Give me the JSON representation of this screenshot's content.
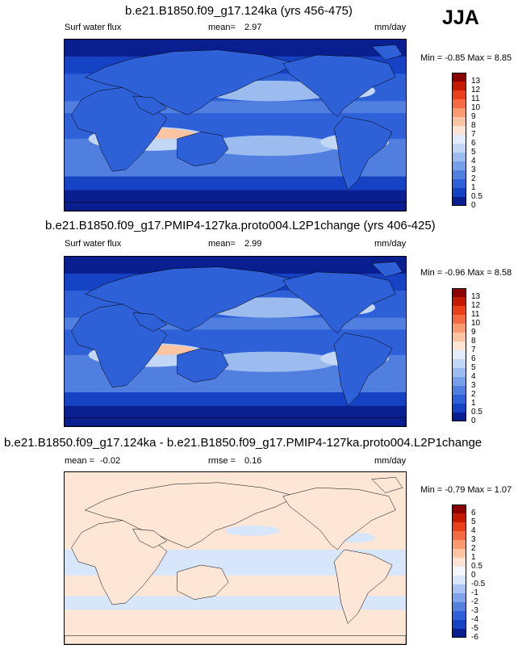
{
  "season": "JJA",
  "panels": [
    {
      "id": "p1",
      "title": "b.e21.B1850.f09_g17.124ka (yrs 456-475)",
      "left_label": "Surf water flux",
      "stat_label": "mean=",
      "stat_value": "2.97",
      "stat2_label": "",
      "stat2_value": "",
      "units": "mm/day",
      "minmax": "Min =  -0.85 Max =  8.85",
      "scale_labels": [
        "13",
        "12",
        "11",
        "10",
        "9",
        "8",
        "7",
        "6",
        "5",
        "4",
        "3",
        "2",
        "1",
        "0.5",
        "0"
      ],
      "scale_colors": [
        "#8b0000",
        "#c41a00",
        "#e8401a",
        "#f56a40",
        "#fb9a70",
        "#fdc4a4",
        "#fde4d4",
        "#e2ecfb",
        "#c2d6f6",
        "#9cbcf0",
        "#779ee8",
        "#517fe0",
        "#2e60d8",
        "#1642c4",
        "#0a1f8f"
      ],
      "base_color": "#2e60d8"
    },
    {
      "id": "p2",
      "title": "b.e21.B1850.f09_g17.PMIP4-127ka.proto004.L2P1change (yrs 406-425)",
      "left_label": "Surf water flux",
      "stat_label": "mean=",
      "stat_value": "2.99",
      "stat2_label": "",
      "stat2_value": "",
      "units": "mm/day",
      "minmax": "Min =  -0.96 Max =  8.58",
      "scale_labels": [
        "13",
        "12",
        "11",
        "10",
        "9",
        "8",
        "7",
        "6",
        "5",
        "4",
        "3",
        "2",
        "1",
        "0.5",
        "0"
      ],
      "scale_colors": [
        "#8b0000",
        "#c41a00",
        "#e8401a",
        "#f56a40",
        "#fb9a70",
        "#fdc4a4",
        "#fde4d4",
        "#e2ecfb",
        "#c2d6f6",
        "#9cbcf0",
        "#779ee8",
        "#517fe0",
        "#2e60d8",
        "#1642c4",
        "#0a1f8f"
      ],
      "base_color": "#2e60d8"
    },
    {
      "id": "p3",
      "title": "b.e21.B1850.f09_g17.124ka - b.e21.B1850.f09_g17.PMIP4-127ka.proto004.L2P1change",
      "left_label": "",
      "stat_label": "mean =",
      "stat_value": "-0.02",
      "stat2_label": "rmse =",
      "stat2_value": "0.16",
      "units": "mm/day",
      "minmax": "Min =  -0.79 Max =  1.07",
      "scale_labels": [
        "6",
        "5",
        "4",
        "3",
        "2",
        "1",
        "0.5",
        "0",
        "-0.5",
        "-1",
        "-2",
        "-3",
        "-4",
        "-5",
        "-6"
      ],
      "scale_colors": [
        "#8b0000",
        "#c41a00",
        "#e8401a",
        "#f56a40",
        "#fb9a70",
        "#fdc4a4",
        "#fde4d4",
        "#f4f6fc",
        "#d8e6fb",
        "#a9c4f2",
        "#7fa2ea",
        "#5580e0",
        "#2e60d8",
        "#1642c4",
        "#0a1f8f"
      ],
      "base_color": "#fde6d6"
    }
  ]
}
